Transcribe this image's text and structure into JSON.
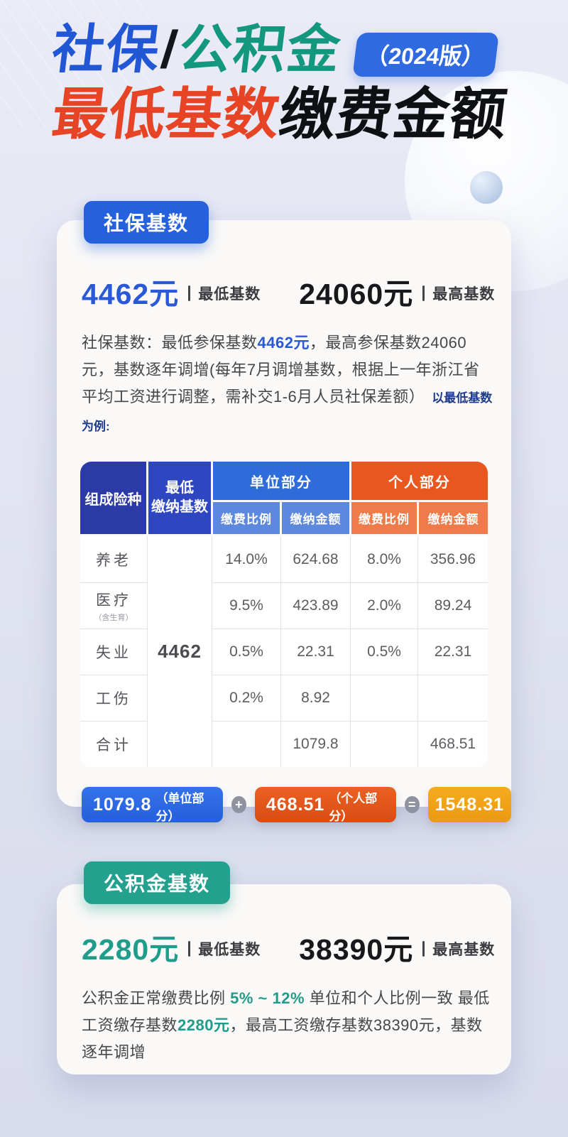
{
  "title": {
    "part_blue": "社保",
    "part_slash": "/",
    "part_teal": "公积金",
    "badge": "（2024版）",
    "part_red": "最低基数",
    "part_black": "缴费金额"
  },
  "colors": {
    "accent_blue": "#2560dd",
    "accent_teal": "#23a08e",
    "accent_red": "#e64424",
    "accent_orange": "#e8571d",
    "accent_yellow": "#f0a11b"
  },
  "social_card": {
    "badge": "社保基数",
    "min_value": "4462元",
    "min_label": "最低基数",
    "max_value": "24060元",
    "max_label": "最高基数",
    "desc_seg1": "社保基数：最低参保基数",
    "desc_hl1": "4462元",
    "desc_seg2": "，最高参保基数24060元，基数逐年调增(每年7月调增基数，根据上一年浙江省平均工资进行调整，需补交1-6月人员社保差额）",
    "note": "以最低基数为例:",
    "table": {
      "header": {
        "type": "组成险种",
        "base_line1": "最低",
        "base_line2": "缴纳基数",
        "company": "单位部分",
        "personal": "个人部分",
        "rate": "缴费比例",
        "amount": "缴纳金额"
      },
      "base_value": "4462",
      "rows": [
        {
          "name": "养老",
          "sub": "",
          "company_rate": "14.0%",
          "company_amount": "624.68",
          "personal_rate": "8.0%",
          "personal_amount": "356.96"
        },
        {
          "name": "医疗",
          "sub": "（含生育）",
          "company_rate": "9.5%",
          "company_amount": "423.89",
          "personal_rate": "2.0%",
          "personal_amount": "89.24"
        },
        {
          "name": "失业",
          "sub": "",
          "company_rate": "0.5%",
          "company_amount": "22.31",
          "personal_rate": "0.5%",
          "personal_amount": "22.31"
        },
        {
          "name": "工伤",
          "sub": "",
          "company_rate": "0.2%",
          "company_amount": "8.92",
          "personal_rate": "",
          "personal_amount": ""
        },
        {
          "name": "合计",
          "sub": "",
          "company_rate": "",
          "company_amount": "1079.8",
          "personal_rate": "",
          "personal_amount": "468.51"
        }
      ]
    },
    "formula": {
      "company_value": "1079.8",
      "company_label": "（单位部分）",
      "plus": "+",
      "personal_value": "468.51",
      "personal_label": "（个人部分）",
      "equals": "=",
      "total_value": "1548.31"
    }
  },
  "fund_card": {
    "badge": "公积金基数",
    "min_value": "2280元",
    "min_label": "最低基数",
    "max_value": "38390元",
    "max_label": "最高基数",
    "desc_seg1": "公积金正常缴费比例 ",
    "desc_hl1": "5% ~ 12%",
    "desc_seg2": " 单位和个人比例一致 最低工资缴存基数",
    "desc_hl2": "2280元",
    "desc_seg3": "，最高工资缴存基数38390元，基数逐年调增"
  }
}
